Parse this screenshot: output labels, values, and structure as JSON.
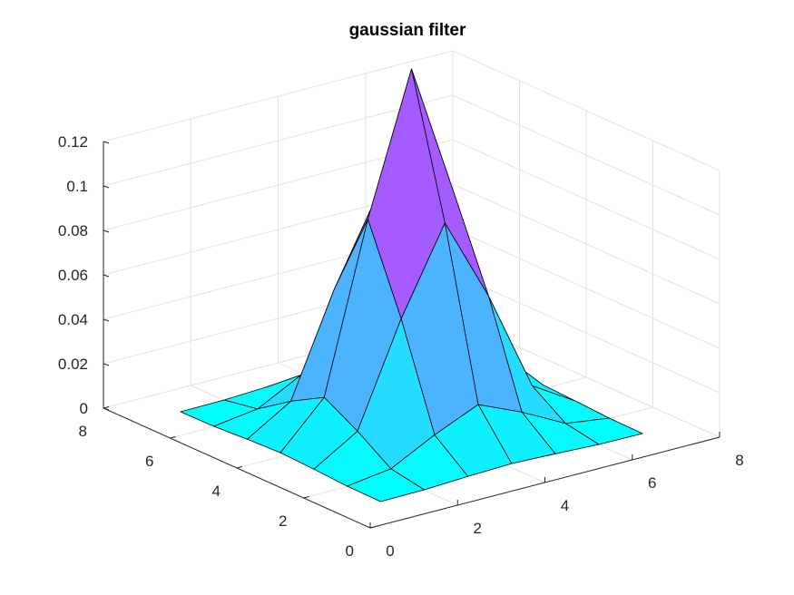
{
  "chart_data": {
    "type": "surface",
    "title": "gaussian filter",
    "xlabel": "",
    "ylabel": "",
    "zlabel": "",
    "xlim": [
      0,
      8
    ],
    "ylim": [
      0,
      8
    ],
    "zlim": [
      0,
      0.12
    ],
    "grid": true,
    "colormap": "cool",
    "x_ticks": [
      "0",
      "2",
      "4",
      "6",
      "8"
    ],
    "y_ticks": [
      "0",
      "2",
      "4",
      "6",
      "8"
    ],
    "z_ticks": [
      "0",
      "0.02",
      "0.04",
      "0.06",
      "0.08",
      "0.1",
      "0.12"
    ],
    "x": [
      1,
      2,
      3,
      4,
      5,
      6,
      7
    ],
    "y": [
      1,
      2,
      3,
      4,
      5,
      6,
      7
    ],
    "z": [
      [
        0.0,
        0.0002,
        0.0011,
        0.0018,
        0.0011,
        0.0002,
        0.0
      ],
      [
        0.0002,
        0.0029,
        0.0131,
        0.0216,
        0.0131,
        0.0029,
        0.0002
      ],
      [
        0.0011,
        0.0131,
        0.0586,
        0.0966,
        0.0586,
        0.0131,
        0.0011
      ],
      [
        0.0018,
        0.0216,
        0.0966,
        0.1592,
        0.0966,
        0.0216,
        0.0018
      ],
      [
        0.0011,
        0.0131,
        0.0586,
        0.0966,
        0.0586,
        0.0131,
        0.0011
      ],
      [
        0.0002,
        0.0029,
        0.0131,
        0.0216,
        0.0131,
        0.0029,
        0.0002
      ],
      [
        0.0,
        0.0002,
        0.0011,
        0.0018,
        0.0011,
        0.0002,
        0.0
      ]
    ]
  }
}
